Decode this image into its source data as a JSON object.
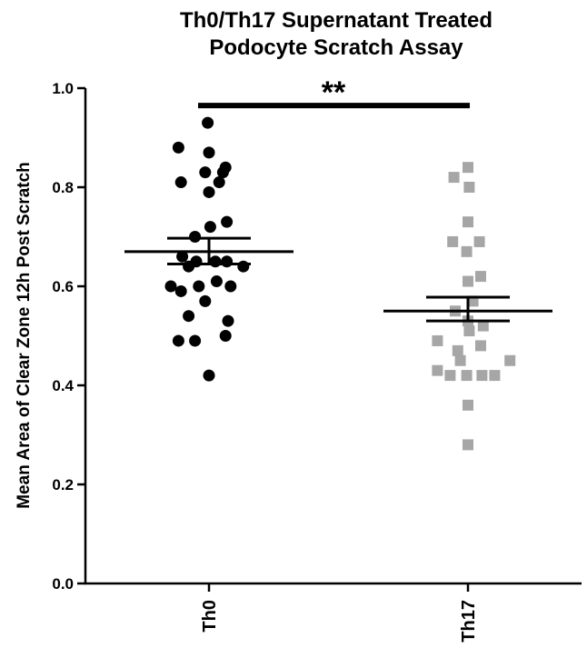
{
  "chart_data": {
    "type": "scatter",
    "title_lines": [
      "Th0/Th17 Supernatant Treated",
      "Podocyte Scratch Assay"
    ],
    "ylabel": "Mean Area of Clear Zone 12h Post Scratch",
    "xlabel": "",
    "ylim": [
      0.0,
      1.0
    ],
    "yticks": [
      0.0,
      0.2,
      0.4,
      0.6,
      0.8,
      1.0
    ],
    "ytick_labels": [
      "0.0",
      "0.2",
      "0.4",
      "0.6",
      "0.8",
      "1.0"
    ],
    "categories": [
      "Th0",
      "Th17"
    ],
    "grid": false,
    "significance": {
      "label": "**",
      "between": [
        "Th0",
        "Th17"
      ],
      "y": 0.965
    },
    "series": [
      {
        "category": "Th0",
        "marker": "circle",
        "color": "#000000",
        "mean": 0.67,
        "sem_upper": 0.697,
        "sem_lower": 0.645,
        "points": [
          {
            "offset": -0.01,
            "y": 0.93
          },
          {
            "offset": -0.24,
            "y": 0.88
          },
          {
            "offset": 0.0,
            "y": 0.87
          },
          {
            "offset": 0.13,
            "y": 0.84
          },
          {
            "offset": -0.03,
            "y": 0.83
          },
          {
            "offset": 0.11,
            "y": 0.83
          },
          {
            "offset": -0.22,
            "y": 0.81
          },
          {
            "offset": 0.08,
            "y": 0.81
          },
          {
            "offset": 0.0,
            "y": 0.79
          },
          {
            "offset": 0.14,
            "y": 0.73
          },
          {
            "offset": 0.01,
            "y": 0.72
          },
          {
            "offset": -0.11,
            "y": 0.7
          },
          {
            "offset": -0.21,
            "y": 0.66
          },
          {
            "offset": -0.1,
            "y": 0.65
          },
          {
            "offset": 0.05,
            "y": 0.65
          },
          {
            "offset": 0.14,
            "y": 0.65
          },
          {
            "offset": -0.16,
            "y": 0.64
          },
          {
            "offset": 0.27,
            "y": 0.64
          },
          {
            "offset": -0.3,
            "y": 0.6
          },
          {
            "offset": -0.22,
            "y": 0.59
          },
          {
            "offset": -0.08,
            "y": 0.6
          },
          {
            "offset": 0.06,
            "y": 0.61
          },
          {
            "offset": 0.17,
            "y": 0.6
          },
          {
            "offset": -0.03,
            "y": 0.57
          },
          {
            "offset": -0.16,
            "y": 0.54
          },
          {
            "offset": 0.15,
            "y": 0.53
          },
          {
            "offset": -0.24,
            "y": 0.49
          },
          {
            "offset": -0.11,
            "y": 0.49
          },
          {
            "offset": 0.13,
            "y": 0.5
          },
          {
            "offset": 0.0,
            "y": 0.42
          }
        ]
      },
      {
        "category": "Th17",
        "marker": "square",
        "color": "#a6a6a6",
        "mean": 0.55,
        "sem_upper": 0.578,
        "sem_lower": 0.53,
        "points": [
          {
            "offset": 0.0,
            "y": 0.84
          },
          {
            "offset": -0.11,
            "y": 0.82
          },
          {
            "offset": 0.01,
            "y": 0.8
          },
          {
            "offset": 0.0,
            "y": 0.73
          },
          {
            "offset": -0.12,
            "y": 0.69
          },
          {
            "offset": 0.09,
            "y": 0.69
          },
          {
            "offset": -0.01,
            "y": 0.67
          },
          {
            "offset": 0.1,
            "y": 0.62
          },
          {
            "offset": 0.0,
            "y": 0.61
          },
          {
            "offset": 0.04,
            "y": 0.57
          },
          {
            "offset": -0.1,
            "y": 0.55
          },
          {
            "offset": 0.12,
            "y": 0.52
          },
          {
            "offset": 0.0,
            "y": 0.53
          },
          {
            "offset": 0.01,
            "y": 0.51
          },
          {
            "offset": -0.24,
            "y": 0.49
          },
          {
            "offset": -0.08,
            "y": 0.47
          },
          {
            "offset": 0.1,
            "y": 0.48
          },
          {
            "offset": -0.06,
            "y": 0.45
          },
          {
            "offset": 0.33,
            "y": 0.45
          },
          {
            "offset": -0.24,
            "y": 0.43
          },
          {
            "offset": -0.14,
            "y": 0.42
          },
          {
            "offset": -0.01,
            "y": 0.42
          },
          {
            "offset": 0.11,
            "y": 0.42
          },
          {
            "offset": 0.21,
            "y": 0.42
          },
          {
            "offset": 0.0,
            "y": 0.36
          },
          {
            "offset": 0.0,
            "y": 0.28
          }
        ]
      }
    ]
  }
}
